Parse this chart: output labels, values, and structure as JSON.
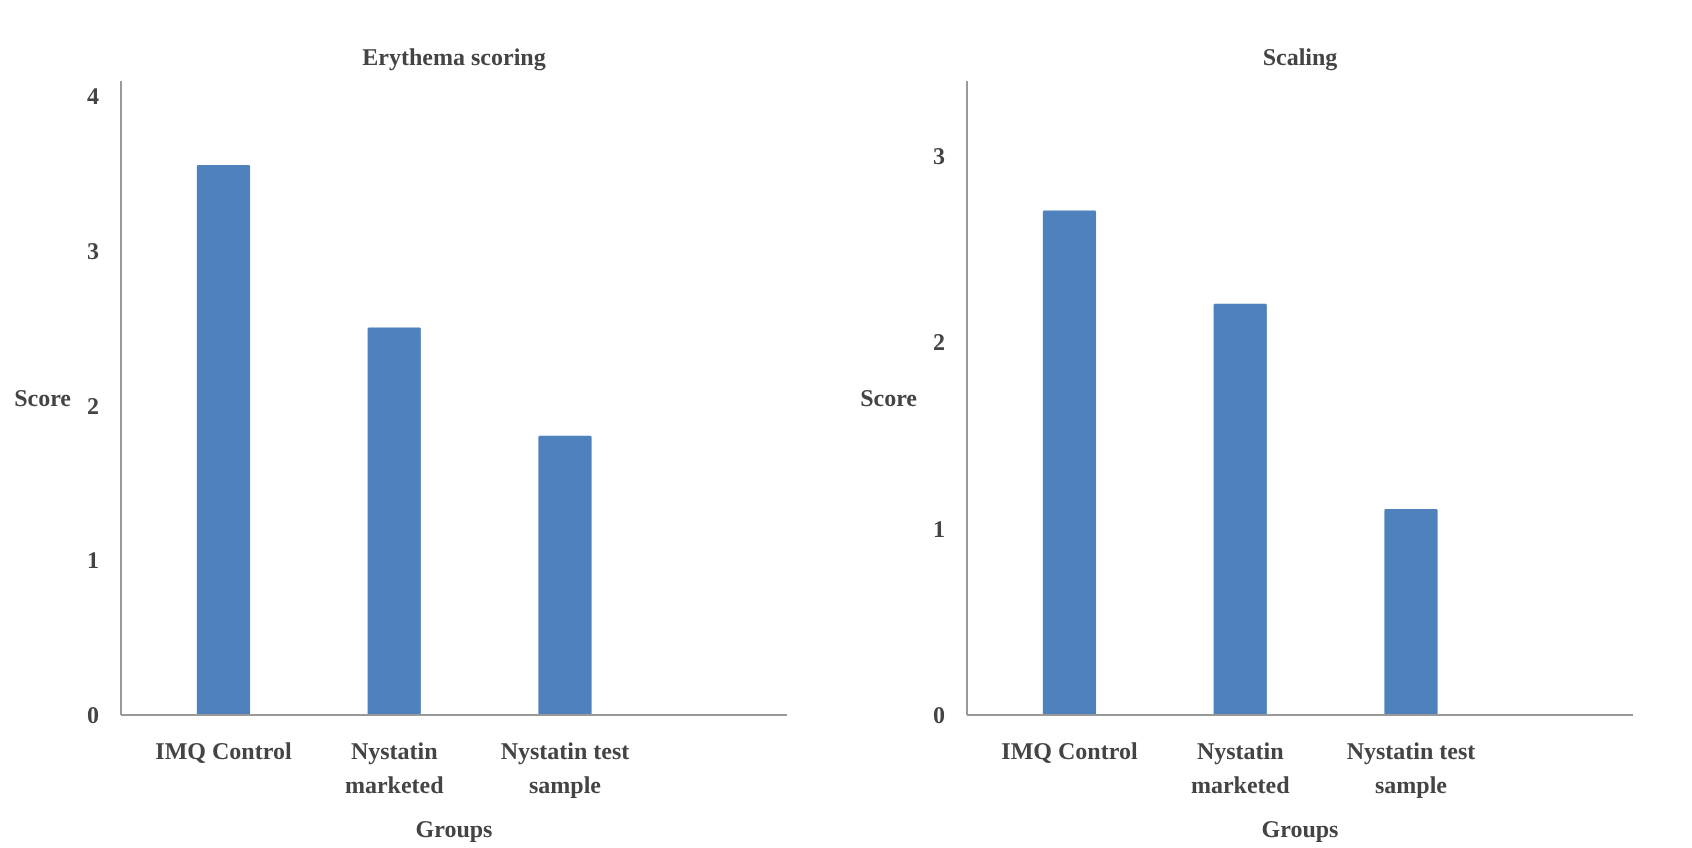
{
  "chart_data": [
    {
      "type": "bar",
      "title": "Erythema scoring",
      "xlabel": "Groups",
      "ylabel": "Score",
      "categories": [
        "IMQ Control",
        "Nystatin marketed",
        "Nystatin test sample"
      ],
      "values": [
        3.55,
        2.5,
        1.8
      ],
      "color": "#4f81bd",
      "ylim": [
        0,
        4.1
      ],
      "yticks": [
        0,
        1,
        2,
        3,
        4
      ],
      "grid": false
    },
    {
      "type": "bar",
      "title": "Scaling",
      "xlabel": "Groups",
      "ylabel": "Score",
      "categories": [
        "IMQ Control",
        "Nystatin marketed",
        "Nystatin test sample"
      ],
      "values": [
        2.7,
        2.2,
        1.1
      ],
      "color": "#4f81bd",
      "ylim": [
        0,
        3.4
      ],
      "yticks": [
        0,
        1,
        2,
        3
      ],
      "grid": false
    }
  ]
}
